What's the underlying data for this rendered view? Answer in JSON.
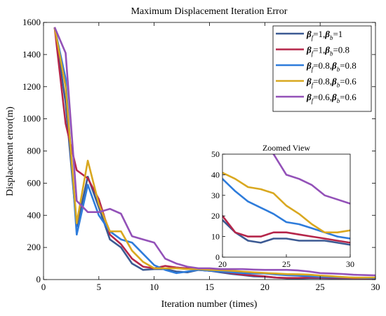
{
  "chart_data": [
    {
      "type": "line",
      "title": "Maximum Displacement Iteration Error",
      "xlabel": "Iteration number (times)",
      "ylabel": "Displacement error(m)",
      "xlim": [
        0,
        30
      ],
      "ylim": [
        0,
        1600
      ],
      "xticks": [
        0,
        5,
        10,
        15,
        20,
        25,
        30
      ],
      "yticks": [
        0,
        200,
        400,
        600,
        800,
        1000,
        1200,
        1400,
        1600
      ],
      "grid": false,
      "legend_position": "top-right",
      "x": [
        1,
        2,
        3,
        4,
        5,
        6,
        7,
        8,
        9,
        10,
        11,
        12,
        13,
        14,
        15,
        16,
        17,
        18,
        19,
        20,
        21,
        22,
        23,
        24,
        25,
        26,
        27,
        28,
        29,
        30
      ],
      "series": [
        {
          "name": "βf=1,βb=1",
          "legend": {
            "b1": "β",
            "s1": "f",
            "t1": "=1,",
            "b2": "β",
            "s2": "b",
            "t2": "=1"
          },
          "color": "#3C5A93",
          "values": [
            1570,
            1100,
            330,
            640,
            450,
            250,
            200,
            100,
            60,
            65,
            65,
            50,
            45,
            60,
            55,
            45,
            35,
            28,
            20,
            18,
            12,
            8,
            7,
            9,
            9,
            8,
            8,
            8,
            7,
            6
          ]
        },
        {
          "name": "βf=1,βb=0.8",
          "legend": {
            "b1": "β",
            "s1": "f",
            "t1": "=1,",
            "b2": "β",
            "s2": "b",
            "t2": "=0.8"
          },
          "color": "#B5264A",
          "values": [
            1570,
            970,
            680,
            630,
            500,
            280,
            220,
            130,
            80,
            70,
            85,
            75,
            70,
            60,
            55,
            50,
            40,
            30,
            25,
            20,
            12,
            10,
            10,
            12,
            12,
            11,
            10,
            9,
            8,
            7
          ]
        },
        {
          "name": "βf=0.8,βb=0.8",
          "legend": {
            "b1": "β",
            "s1": "f",
            "t1": "=0.8,",
            "b2": "β",
            "s2": "b",
            "t2": "=0.8"
          },
          "color": "#2E7CDB",
          "values": [
            1570,
            1250,
            280,
            590,
            400,
            300,
            250,
            230,
            160,
            90,
            60,
            40,
            50,
            60,
            55,
            50,
            45,
            40,
            38,
            38,
            32,
            27,
            24,
            21,
            17,
            16,
            14,
            12,
            10,
            9
          ]
        },
        {
          "name": "βf=0.8,βb=0.6",
          "legend": {
            "b1": "β",
            "s1": "f",
            "t1": "=0.8,",
            "b2": "β",
            "s2": "b",
            "t2": "=0.6"
          },
          "color": "#D9A820",
          "values": [
            1570,
            1200,
            350,
            740,
            470,
            300,
            300,
            180,
            110,
            70,
            70,
            70,
            65,
            65,
            60,
            58,
            55,
            50,
            45,
            41,
            38,
            34,
            33,
            31,
            25,
            21,
            16,
            12,
            12,
            13
          ]
        },
        {
          "name": "βf=0.6,βb=0.6",
          "legend": {
            "b1": "β",
            "s1": "f",
            "t1": "=0.6,",
            "b2": "β",
            "s2": "b",
            "t2": "=0.6"
          },
          "color": "#9351B8",
          "values": [
            1570,
            1410,
            490,
            420,
            420,
            440,
            410,
            270,
            250,
            230,
            130,
            100,
            80,
            70,
            70,
            65,
            65,
            65,
            62,
            60,
            60,
            60,
            57,
            50,
            40,
            38,
            35,
            30,
            28,
            26
          ]
        }
      ]
    },
    {
      "type": "line",
      "title": "Zoomed View",
      "xlim": [
        20,
        30
      ],
      "ylim": [
        0,
        50
      ],
      "xticks": [
        20,
        25,
        30
      ],
      "yticks": [
        0,
        10,
        20,
        30,
        40,
        50
      ],
      "grid": false,
      "note": "Inset showing series 1-5 for x from 20 to 30"
    }
  ]
}
